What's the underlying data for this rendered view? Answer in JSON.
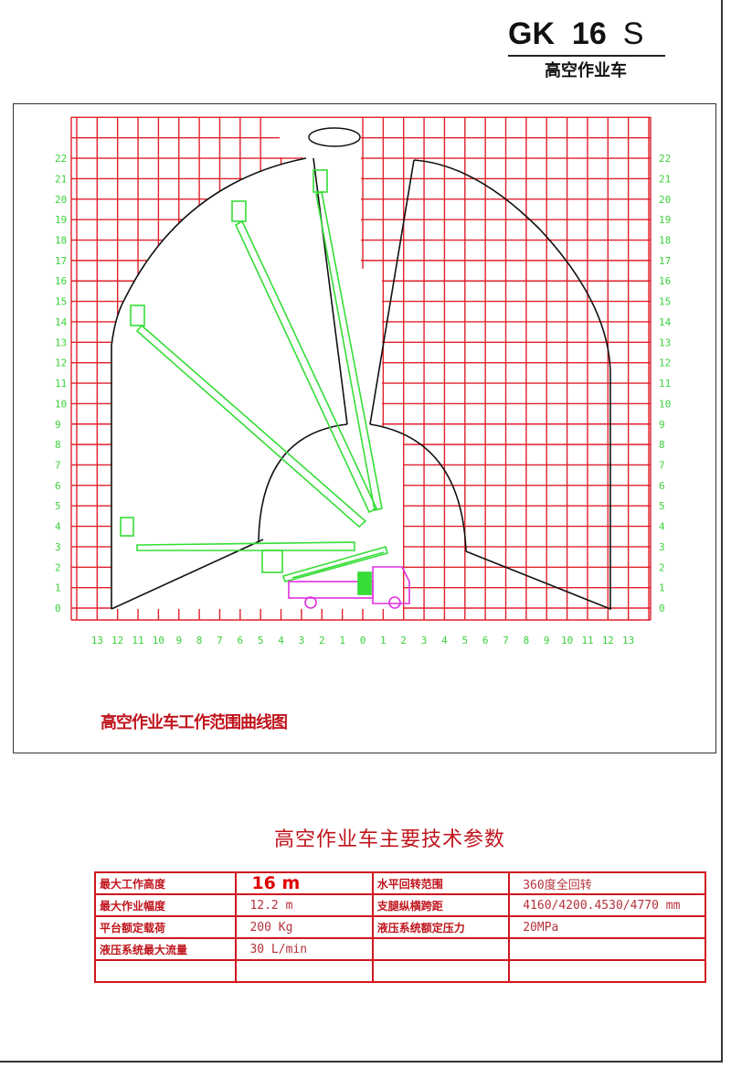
{
  "header": {
    "model_prefix": "GK",
    "model_number": "16",
    "model_suffix": "S",
    "subtitle": "高空作业车"
  },
  "diagram": {
    "caption": "高空作业车工作范围曲线图",
    "y_tick_labels": [
      "0",
      "1",
      "2",
      "3",
      "4",
      "5",
      "6",
      "7",
      "8",
      "9",
      "10",
      "11",
      "12",
      "13",
      "14",
      "15",
      "16",
      "17",
      "18",
      "19",
      "20",
      "21",
      "22"
    ],
    "x_tick_labels": [
      "13",
      "12",
      "11",
      "10",
      "9",
      "8",
      "7",
      "6",
      "5",
      "4",
      "3",
      "2",
      "1",
      "0",
      "1",
      "2",
      "3",
      "4",
      "5",
      "6",
      "7",
      "8",
      "9",
      "10",
      "11",
      "12",
      "13"
    ],
    "colors": {
      "grid": "#e0202a",
      "envelope": "#111111",
      "boom": "#35dd35",
      "truck": "#e030e0",
      "axis_labels": "#3ad13a"
    }
  },
  "specs": {
    "title": "高空作业车主要技术参数",
    "rows": [
      {
        "label1": "最大工作高度",
        "value1": "16 m",
        "label2": "水平回转范围",
        "value2": "360度全回转"
      },
      {
        "label1": "最大作业幅度",
        "value1": "12.2 m",
        "label2": "支腿纵横跨距",
        "value2": "4160/4200.4530/4770 mm"
      },
      {
        "label1": "平台额定载荷",
        "value1": "200 Kg",
        "label2": "液压系统额定压力",
        "value2": "20MPa"
      },
      {
        "label1": "液压系统最大流量",
        "value1": "30 L/min",
        "label2": "",
        "value2": ""
      },
      {
        "label1": "",
        "value1": "",
        "label2": "",
        "value2": ""
      }
    ]
  }
}
